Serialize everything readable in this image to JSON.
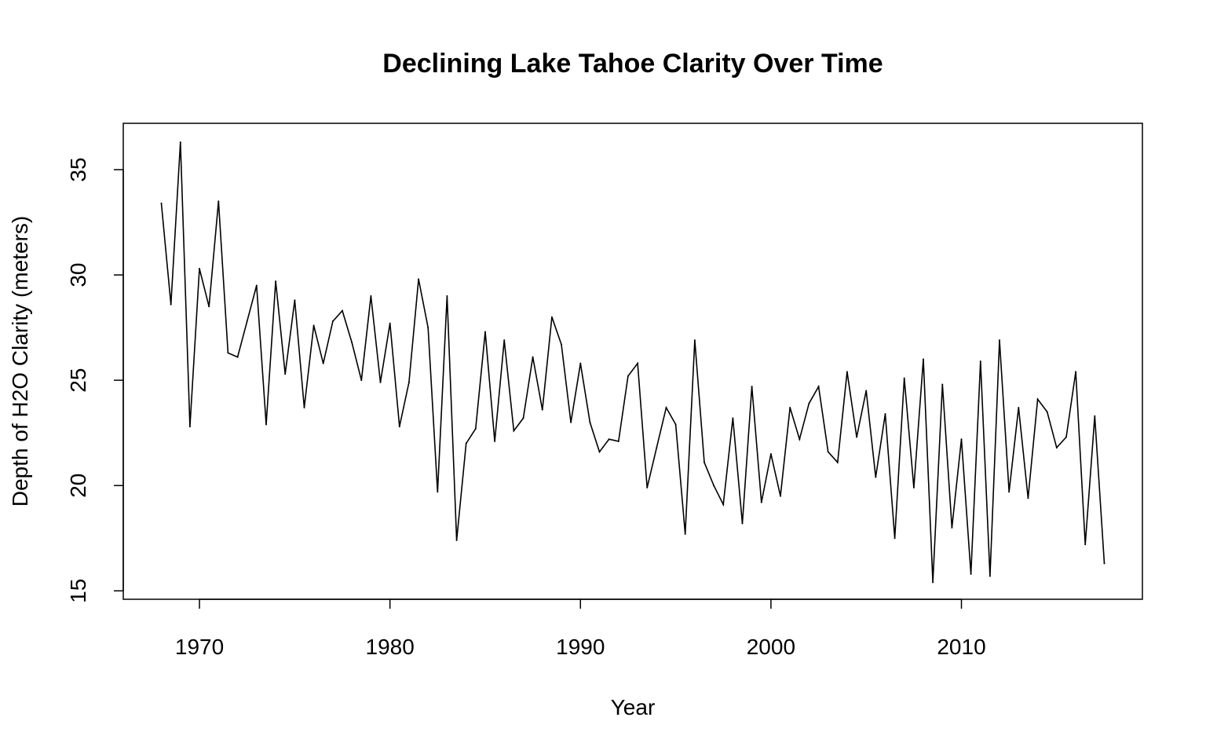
{
  "chart_data": {
    "type": "line",
    "title": "Declining Lake Tahoe Clarity Over Time",
    "xlabel": "Year",
    "ylabel": "Depth of H2O Clarity (meters)",
    "xlim": [
      1966,
      2019.5
    ],
    "ylim": [
      14.6,
      37.2
    ],
    "xticks": [
      1970,
      1980,
      1990,
      2000,
      2010
    ],
    "yticks": [
      15,
      20,
      25,
      30,
      35
    ],
    "grid": false,
    "legend": "none",
    "line_color": "#000000",
    "series": [
      {
        "x": [
          1968.0,
          1968.5,
          1969.0,
          1969.5,
          1970.0,
          1970.5,
          1971.0,
          1971.5,
          1972.0,
          1972.5,
          1973.0,
          1973.5,
          1974.0,
          1974.5,
          1975.0,
          1975.5,
          1976.0,
          1976.5,
          1977.0,
          1977.5,
          1978.0,
          1978.5,
          1979.0,
          1979.5,
          1980.0,
          1980.5,
          1981.0,
          1981.5,
          1982.0,
          1982.5,
          1983.0,
          1983.5,
          1984.0,
          1984.5,
          1985.0,
          1985.5,
          1986.0,
          1986.5,
          1987.0,
          1987.5,
          1988.0,
          1988.5,
          1989.0,
          1989.5,
          1990.0,
          1990.5,
          1991.0,
          1991.5,
          1992.0,
          1992.5,
          1993.0,
          1993.5,
          1994.0,
          1994.5,
          1995.0,
          1995.5,
          1996.0,
          1996.5,
          1997.0,
          1997.5,
          1998.0,
          1998.5,
          1999.0,
          1999.5,
          2000.0,
          2000.5,
          2001.0,
          2001.5,
          2002.0,
          2002.5,
          2003.0,
          2003.5,
          2004.0,
          2004.5,
          2005.0,
          2005.5,
          2006.0,
          2006.5,
          2007.0,
          2007.5,
          2008.0,
          2008.5,
          2009.0,
          2009.5,
          2010.0,
          2010.5,
          2011.0,
          2011.5,
          2012.0,
          2012.5,
          2013.0,
          2013.5,
          2014.0,
          2014.5,
          2015.0,
          2015.5,
          2016.0,
          2016.5,
          2017.0,
          2017.5
        ],
        "values": [
          33.4,
          28.6,
          36.3,
          22.8,
          30.3,
          28.5,
          33.5,
          26.3,
          26.1,
          27.8,
          29.5,
          22.9,
          29.7,
          25.3,
          28.8,
          23.7,
          27.6,
          25.8,
          27.8,
          28.3,
          26.8,
          25.0,
          29.0,
          24.9,
          27.7,
          22.8,
          24.9,
          29.8,
          27.5,
          19.7,
          29.0,
          17.4,
          22.0,
          22.7,
          27.3,
          22.1,
          26.9,
          22.6,
          23.2,
          26.1,
          23.6,
          28.0,
          26.7,
          23.0,
          25.8,
          23.0,
          21.6,
          22.2,
          22.1,
          25.2,
          25.8,
          19.9,
          21.8,
          23.7,
          22.9,
          17.7,
          26.9,
          21.1,
          20.0,
          19.1,
          23.2,
          18.2,
          24.7,
          19.2,
          21.5,
          19.5,
          23.7,
          22.2,
          23.9,
          24.7,
          21.6,
          21.1,
          25.4,
          22.3,
          24.5,
          20.4,
          23.4,
          17.5,
          25.1,
          19.9,
          26.0,
          15.4,
          24.8,
          18.0,
          22.2,
          15.8,
          25.9,
          15.7,
          26.9,
          19.7,
          23.7,
          19.4,
          24.1,
          23.5,
          21.8,
          22.3,
          25.4,
          17.2,
          23.3,
          16.3
        ]
      }
    ]
  }
}
